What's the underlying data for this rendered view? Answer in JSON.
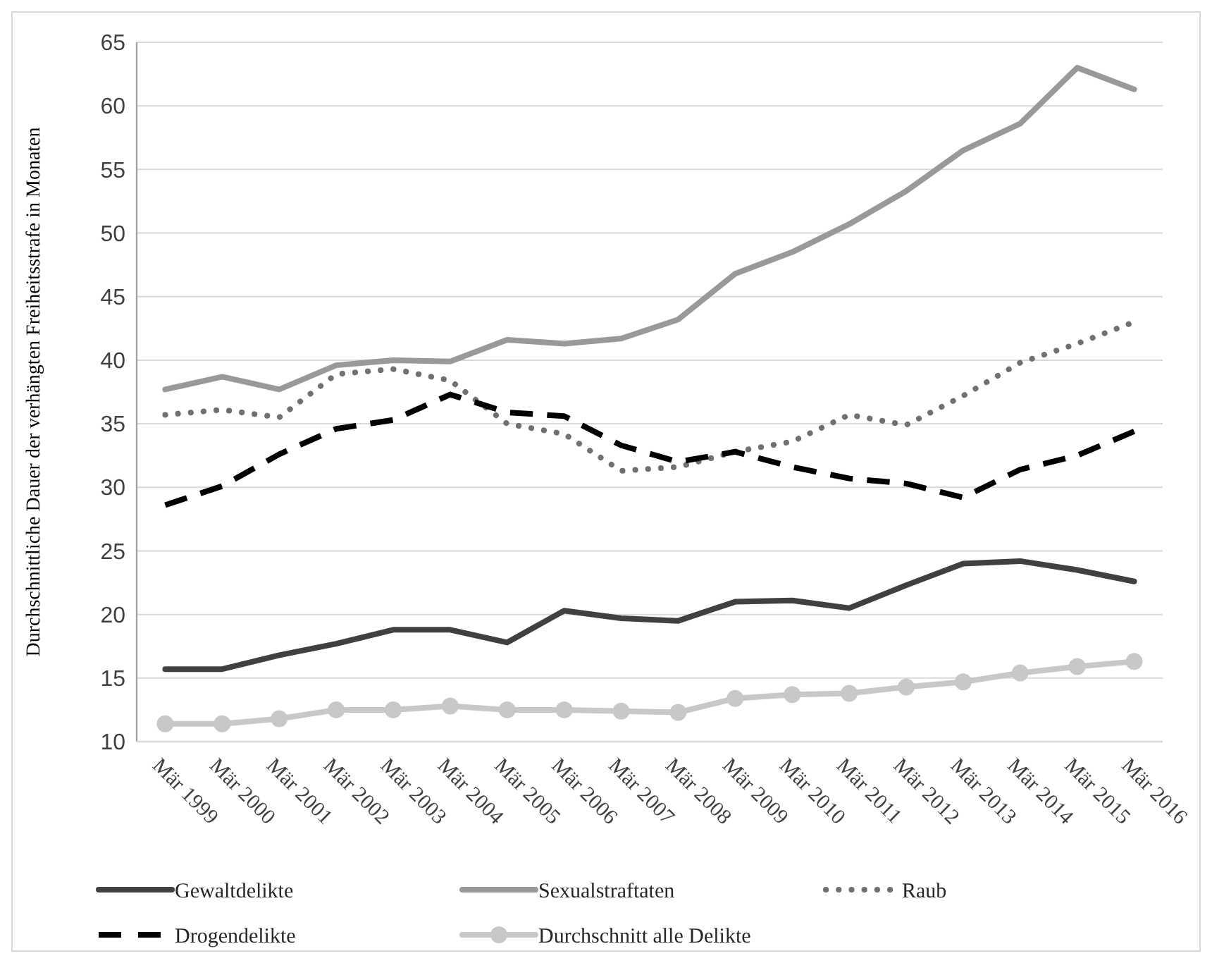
{
  "chart_data": {
    "type": "line",
    "ylabel": "Durchschnittliche Dauer der verhängten Freiheitsstrafe in Monaten",
    "categories": [
      "Mär 1999",
      "Mär 2000",
      "Mär 2001",
      "Mär 2002",
      "Mär 2003",
      "Mär 2004",
      "Mär 2005",
      "Mär 2006",
      "Mär 2007",
      "Mär 2008",
      "Mär 2009",
      "Mär 2010",
      "Mär 2011",
      "Mär 2012",
      "Mär 2013",
      "Mär 2014",
      "Mär 2015",
      "Mär 2016"
    ],
    "ylim": [
      10,
      65
    ],
    "yticks": [
      10,
      15,
      20,
      25,
      30,
      35,
      40,
      45,
      50,
      55,
      60,
      65
    ],
    "grid": "y",
    "legend": "bottom",
    "series": [
      {
        "name": "Gewaltdelikte",
        "color": "#404040",
        "line_style": "solid",
        "marker": "none",
        "values": [
          15.7,
          15.7,
          16.8,
          17.7,
          18.8,
          18.8,
          17.8,
          20.3,
          19.7,
          19.5,
          21.0,
          21.1,
          20.5,
          22.3,
          24.0,
          24.2,
          23.5,
          22.6
        ]
      },
      {
        "name": "Sexualstraftaten",
        "color": "#999999",
        "line_style": "solid",
        "marker": "none",
        "values": [
          37.7,
          38.7,
          37.7,
          39.6,
          40.0,
          39.9,
          41.6,
          41.3,
          41.7,
          43.2,
          46.8,
          48.5,
          50.7,
          53.3,
          56.5,
          58.6,
          63.0,
          61.3
        ]
      },
      {
        "name": "Raub",
        "color": "#707070",
        "line_style": "dotted",
        "marker": "none",
        "values": [
          35.7,
          36.1,
          35.5,
          38.9,
          39.3,
          38.4,
          35.0,
          34.2,
          31.3,
          31.6,
          32.8,
          33.6,
          35.7,
          34.9,
          37.2,
          39.8,
          41.3,
          43.0
        ]
      },
      {
        "name": "Drogendelikte",
        "color": "#000000",
        "line_style": "dashed",
        "marker": "none",
        "values": [
          28.6,
          30.1,
          32.6,
          34.6,
          35.3,
          37.3,
          35.9,
          35.6,
          33.3,
          32.0,
          32.8,
          31.6,
          30.7,
          30.3,
          29.2,
          31.4,
          32.5,
          34.4
        ]
      },
      {
        "name": "Durchschnitt alle Delikte",
        "color": "#c8c8c8",
        "line_style": "solid",
        "marker": "circle",
        "values": [
          11.4,
          11.4,
          11.8,
          12.5,
          12.5,
          12.8,
          12.5,
          12.5,
          12.4,
          12.3,
          13.4,
          13.7,
          13.8,
          14.3,
          14.7,
          15.4,
          15.9,
          16.3
        ]
      }
    ]
  }
}
